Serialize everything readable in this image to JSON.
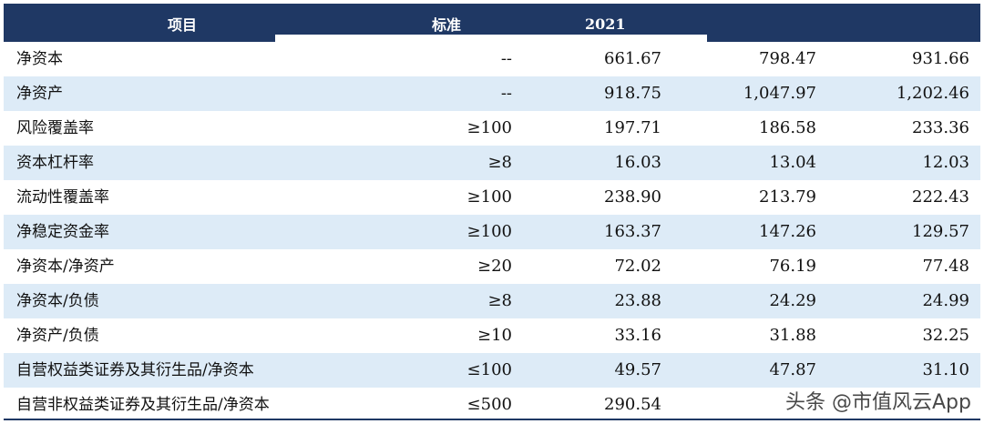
{
  "header": {
    "item": "项目",
    "standard": "标准",
    "year": "2021"
  },
  "rows": [
    {
      "name": "净资本",
      "std": "--",
      "v1": "661.67",
      "v2": "798.47",
      "v3": "931.66"
    },
    {
      "name": "净资产",
      "std": "--",
      "v1": "918.75",
      "v2": "1,047.97",
      "v3": "1,202.46"
    },
    {
      "name": "风险覆盖率",
      "std": "≥100",
      "v1": "197.71",
      "v2": "186.58",
      "v3": "233.36"
    },
    {
      "name": "资本杠杆率",
      "std": "≥8",
      "v1": "16.03",
      "v2": "13.04",
      "v3": "12.03"
    },
    {
      "name": "流动性覆盖率",
      "std": "≥100",
      "v1": "238.90",
      "v2": "213.79",
      "v3": "222.43"
    },
    {
      "name": "净稳定资金率",
      "std": "≥100",
      "v1": "163.37",
      "v2": "147.26",
      "v3": "129.57"
    },
    {
      "name": "净资本/净资产",
      "std": "≥20",
      "v1": "72.02",
      "v2": "76.19",
      "v3": "77.48"
    },
    {
      "name": "净资本/负债",
      "std": "≥8",
      "v1": "23.88",
      "v2": "24.29",
      "v3": "24.99"
    },
    {
      "name": "净资产/负债",
      "std": "≥10",
      "v1": "33.16",
      "v2": "31.88",
      "v3": "32.25"
    },
    {
      "name": "自营权益类证券及其衍生品/净资本",
      "std": "≤100",
      "v1": "49.57",
      "v2": "47.87",
      "v3": "31.10"
    },
    {
      "name": "自营非权益类证券及其衍生品/净资本",
      "std": "≤500",
      "v1": "290.54",
      "v2": "",
      "v3": ""
    }
  ],
  "watermark": "头条 @市值风云App",
  "colors": {
    "header_bg": "#1f3864",
    "alt_row_bg": "#ddebf7"
  }
}
